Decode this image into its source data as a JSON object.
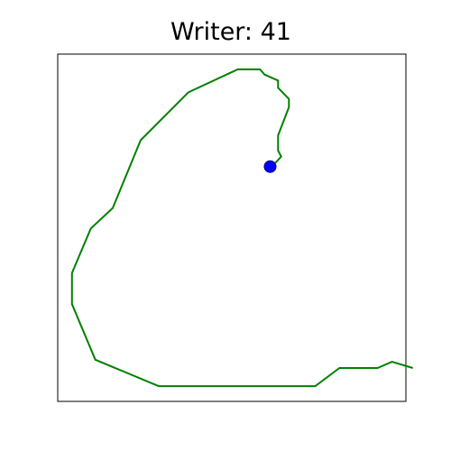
{
  "chart_data": {
    "type": "line",
    "title": "Writer: 41",
    "xlabel": "",
    "ylabel": "",
    "xlim": [
      0,
      100
    ],
    "ylim": [
      0,
      100
    ],
    "axis_ticks": false,
    "grid": false,
    "series": [
      {
        "color": "#008000",
        "points": [
          [
            102.0,
            9.6
          ],
          [
            96.0,
            11.4
          ],
          [
            91.9,
            9.6
          ],
          [
            80.9,
            9.6
          ],
          [
            74.0,
            4.4
          ],
          [
            29.0,
            4.4
          ],
          [
            10.8,
            12.0
          ],
          [
            4.1,
            28.0
          ],
          [
            4.1,
            37.0
          ],
          [
            9.5,
            49.8
          ],
          [
            15.8,
            55.7
          ],
          [
            23.8,
            75.2
          ],
          [
            37.5,
            89.0
          ],
          [
            51.7,
            95.6
          ],
          [
            58.1,
            95.6
          ],
          [
            59.4,
            94.1
          ],
          [
            63.3,
            92.4
          ],
          [
            63.3,
            90.3
          ],
          [
            66.4,
            87.1
          ],
          [
            66.4,
            84.7
          ],
          [
            63.3,
            76.6
          ],
          [
            63.3,
            72.2
          ],
          [
            64.2,
            70.5
          ],
          [
            61.8,
            67.9
          ],
          [
            60.3,
            66.9
          ]
        ]
      }
    ],
    "marker": {
      "x": 61.0,
      "y": 67.6,
      "color": "#0000ff"
    }
  }
}
